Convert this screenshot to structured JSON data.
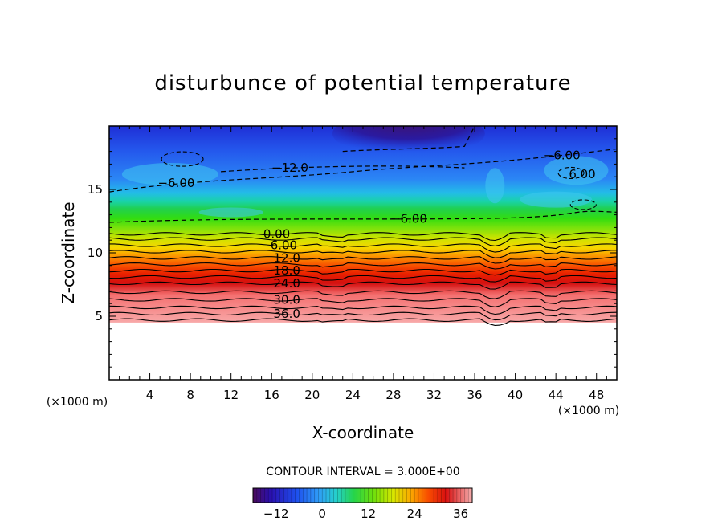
{
  "chart_data": {
    "type": "heatmap",
    "title": "disturbunce of potential temperature",
    "xlabel": "X-coordinate",
    "ylabel": "Z-coordinate",
    "x_unit": "(×1000 m)",
    "y_unit": "(×1000 m)",
    "xlim": [
      0,
      50
    ],
    "ylim": [
      0,
      20
    ],
    "x_ticks": [
      4,
      8,
      12,
      16,
      20,
      24,
      28,
      32,
      36,
      40,
      44,
      48
    ],
    "y_ticks": [
      5,
      10,
      15
    ],
    "contour_interval_text": "CONTOUR INTERVAL = 3.000E+00",
    "contour_labels": [
      {
        "text": "36.0",
        "x": 17.5,
        "z": 5.2
      },
      {
        "text": "30.0",
        "x": 17.5,
        "z": 6.3
      },
      {
        "text": "24.0",
        "x": 17.5,
        "z": 7.6
      },
      {
        "text": "18.0",
        "x": 17.5,
        "z": 8.6
      },
      {
        "text": "12.0",
        "x": 17.5,
        "z": 9.6
      },
      {
        "text": "6.00",
        "x": 17.2,
        "z": 10.6
      },
      {
        "text": "0.00",
        "x": 16.5,
        "z": 11.5
      },
      {
        "text": "-6.00",
        "x": 29.5,
        "z": 12.7
      },
      {
        "text": "-6.00",
        "x": 6.6,
        "z": 15.5
      },
      {
        "text": "-12.0",
        "x": 17.8,
        "z": 16.7
      },
      {
        "text": "-6.00",
        "x": 44.6,
        "z": 17.7
      },
      {
        "text": "6.00",
        "x": 46.6,
        "z": 16.2
      }
    ],
    "colorbar": {
      "range": [
        -18,
        39
      ],
      "tick_labels": [
        "-12",
        "0",
        "12",
        "24",
        "36"
      ],
      "tick_values": [
        -12,
        0,
        12,
        24,
        36
      ]
    }
  }
}
